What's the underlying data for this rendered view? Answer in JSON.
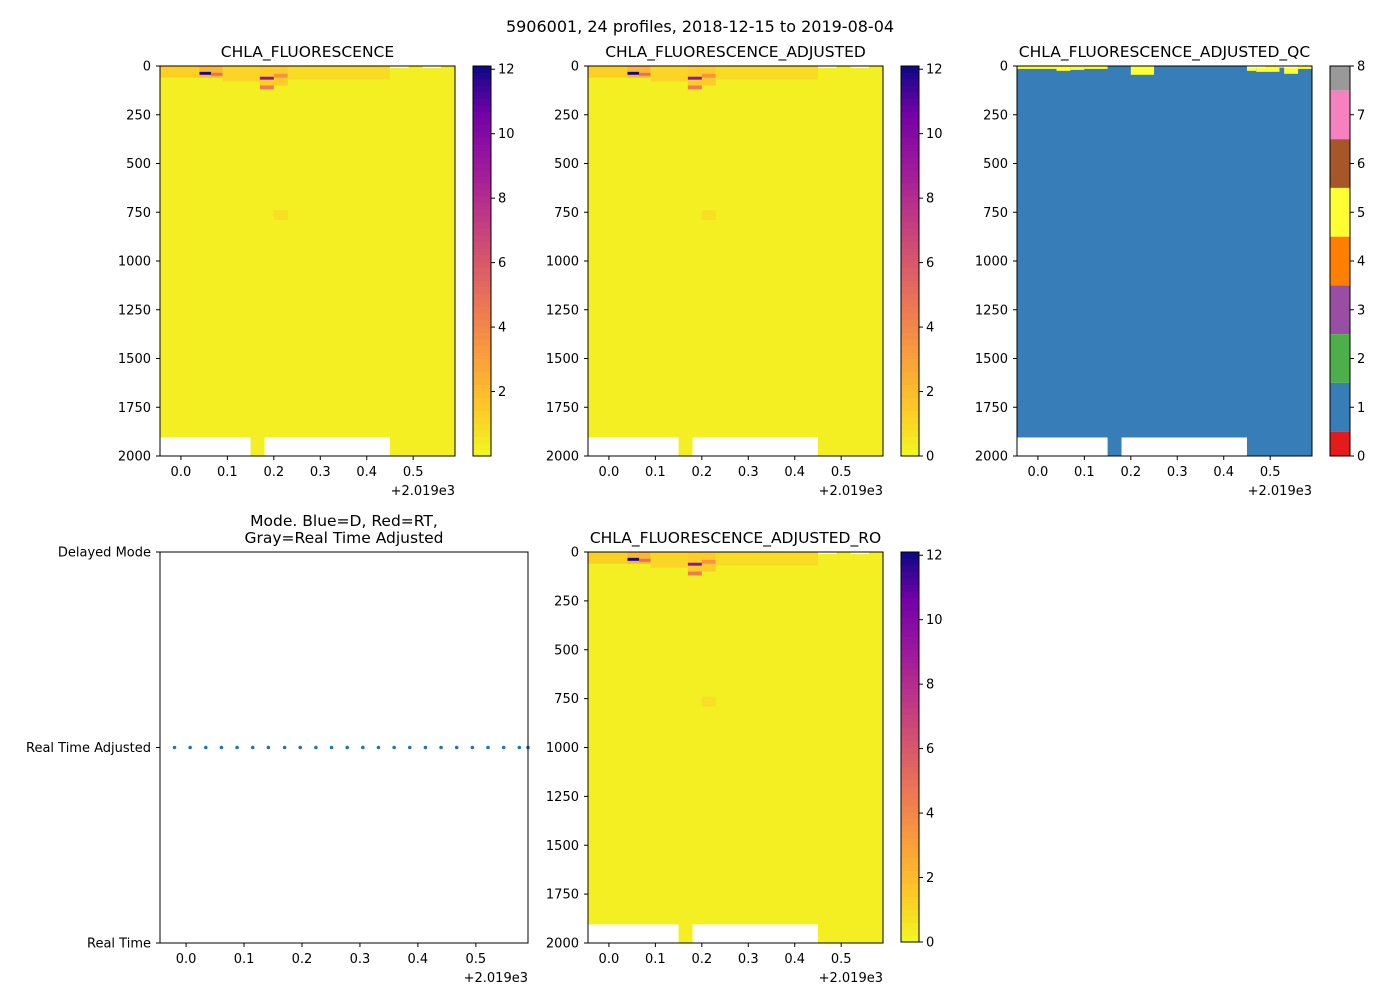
{
  "figure": {
    "suptitle": "5906001, 24 profiles, 2018-12-15 to 2019-08-04"
  },
  "chart_data": [
    {
      "type": "heatmap",
      "title": "CHLA_FLUORESCENCE",
      "xlim": [
        -0.045,
        0.59
      ],
      "ylim": [
        2000,
        0
      ],
      "x_ticks": [
        0.0,
        0.1,
        0.2,
        0.3,
        0.4,
        0.5
      ],
      "x_tick_labels": [
        "0.0",
        "0.1",
        "0.2",
        "0.3",
        "0.4",
        "0.5"
      ],
      "x_offset_label": "+2.019e3",
      "y_ticks": [
        0,
        250,
        500,
        750,
        1000,
        1250,
        1500,
        1750,
        2000
      ],
      "y_tick_labels": [
        "0",
        "250",
        "500",
        "750",
        "1000",
        "1250",
        "1500",
        "1750",
        "2000"
      ],
      "colormap": "plasma_r",
      "background_value": 0.3,
      "colorbar": {
        "range": [
          0,
          12.1
        ],
        "ticks": [
          2,
          4,
          6,
          8,
          10,
          12
        ],
        "tick_labels": [
          "2",
          "4",
          "6",
          "8",
          "10",
          "12"
        ]
      },
      "high_values": [
        {
          "x0": -0.045,
          "x1": 0.04,
          "y0": 0,
          "y1": 60,
          "value": 1.3
        },
        {
          "x0": 0.04,
          "x1": 0.09,
          "y0": 0,
          "y1": 60,
          "value": 2.2
        },
        {
          "x0": 0.04,
          "x1": 0.065,
          "y0": 30,
          "y1": 45,
          "value": 12.0
        },
        {
          "x0": 0.065,
          "x1": 0.09,
          "y0": 35,
          "y1": 50,
          "value": 5.0
        },
        {
          "x0": 0.09,
          "x1": 0.17,
          "y0": 0,
          "y1": 80,
          "value": 1.1
        },
        {
          "x0": 0.17,
          "x1": 0.23,
          "y0": 0,
          "y1": 100,
          "value": 1.4
        },
        {
          "x0": 0.17,
          "x1": 0.2,
          "y0": 55,
          "y1": 70,
          "value": 9.5
        },
        {
          "x0": 0.17,
          "x1": 0.2,
          "y0": 100,
          "y1": 120,
          "value": 4.5
        },
        {
          "x0": 0.2,
          "x1": 0.23,
          "y0": 40,
          "y1": 60,
          "value": 3.5
        },
        {
          "x0": 0.23,
          "x1": 0.45,
          "y0": 0,
          "y1": 70,
          "value": 0.9
        },
        {
          "x0": 0.2,
          "x1": 0.23,
          "y0": 740,
          "y1": 790,
          "value": 0.8
        }
      ],
      "missing": [
        {
          "x0": -0.045,
          "x1": 0.15,
          "y0": 1905,
          "y1": 2000
        },
        {
          "x0": 0.18,
          "x1": 0.45,
          "y0": 1905,
          "y1": 2000
        },
        {
          "x0": 0.45,
          "x1": 0.49,
          "y0": 0,
          "y1": 10
        },
        {
          "x0": 0.52,
          "x1": 0.56,
          "y0": 0,
          "y1": 10
        }
      ]
    },
    {
      "type": "heatmap",
      "title": "CHLA_FLUORESCENCE_ADJUSTED",
      "xlim": [
        -0.045,
        0.59
      ],
      "ylim": [
        2000,
        0
      ],
      "x_ticks": [
        0.0,
        0.1,
        0.2,
        0.3,
        0.4,
        0.5
      ],
      "x_tick_labels": [
        "0.0",
        "0.1",
        "0.2",
        "0.3",
        "0.4",
        "0.5"
      ],
      "x_offset_label": "+2.019e3",
      "y_ticks": [
        0,
        250,
        500,
        750,
        1000,
        1250,
        1500,
        1750,
        2000
      ],
      "y_tick_labels": [
        "0",
        "250",
        "500",
        "750",
        "1000",
        "1250",
        "1500",
        "1750",
        "2000"
      ],
      "colormap": "plasma_r",
      "background_value": 0.3,
      "colorbar": {
        "range": [
          0,
          12.1
        ],
        "ticks": [
          0,
          2,
          4,
          6,
          8,
          10,
          12
        ],
        "tick_labels": [
          "0",
          "2",
          "4",
          "6",
          "8",
          "10",
          "12"
        ]
      },
      "high_values": [
        {
          "x0": -0.045,
          "x1": 0.04,
          "y0": 0,
          "y1": 60,
          "value": 1.3
        },
        {
          "x0": 0.04,
          "x1": 0.09,
          "y0": 0,
          "y1": 60,
          "value": 2.2
        },
        {
          "x0": 0.04,
          "x1": 0.065,
          "y0": 30,
          "y1": 45,
          "value": 12.0
        },
        {
          "x0": 0.065,
          "x1": 0.09,
          "y0": 35,
          "y1": 50,
          "value": 5.0
        },
        {
          "x0": 0.09,
          "x1": 0.17,
          "y0": 0,
          "y1": 80,
          "value": 1.1
        },
        {
          "x0": 0.17,
          "x1": 0.23,
          "y0": 0,
          "y1": 100,
          "value": 1.4
        },
        {
          "x0": 0.17,
          "x1": 0.2,
          "y0": 55,
          "y1": 70,
          "value": 9.5
        },
        {
          "x0": 0.17,
          "x1": 0.2,
          "y0": 100,
          "y1": 120,
          "value": 4.5
        },
        {
          "x0": 0.2,
          "x1": 0.23,
          "y0": 40,
          "y1": 60,
          "value": 3.5
        },
        {
          "x0": 0.23,
          "x1": 0.45,
          "y0": 0,
          "y1": 70,
          "value": 0.9
        },
        {
          "x0": 0.2,
          "x1": 0.23,
          "y0": 740,
          "y1": 790,
          "value": 0.8
        }
      ],
      "missing": [
        {
          "x0": -0.045,
          "x1": 0.15,
          "y0": 1905,
          "y1": 2000
        },
        {
          "x0": 0.18,
          "x1": 0.45,
          "y0": 1905,
          "y1": 2000
        },
        {
          "x0": 0.45,
          "x1": 0.49,
          "y0": 0,
          "y1": 10
        },
        {
          "x0": 0.52,
          "x1": 0.56,
          "y0": 0,
          "y1": 10
        }
      ]
    },
    {
      "type": "heatmap",
      "title": "CHLA_FLUORESCENCE_ADJUSTED_QC",
      "xlim": [
        -0.045,
        0.59
      ],
      "ylim": [
        2000,
        0
      ],
      "x_ticks": [
        0.0,
        0.1,
        0.2,
        0.3,
        0.4,
        0.5
      ],
      "x_tick_labels": [
        "0.0",
        "0.1",
        "0.2",
        "0.3",
        "0.4",
        "0.5"
      ],
      "x_offset_label": "+2.019e3",
      "y_ticks": [
        0,
        250,
        500,
        750,
        1000,
        1250,
        1500,
        1750,
        2000
      ],
      "y_tick_labels": [
        "0",
        "250",
        "500",
        "750",
        "1000",
        "1250",
        "1500",
        "1750",
        "2000"
      ],
      "colormap": "qc_categorical",
      "background_value": 1,
      "categories": [
        {
          "value": 0,
          "color": "#e41a1c"
        },
        {
          "value": 1,
          "color": "#377eb8"
        },
        {
          "value": 2,
          "color": "#4daf4a"
        },
        {
          "value": 3,
          "color": "#984ea3"
        },
        {
          "value": 4,
          "color": "#ff7f00"
        },
        {
          "value": 5,
          "color": "#ffff33"
        },
        {
          "value": 6,
          "color": "#a65628"
        },
        {
          "value": 7,
          "color": "#f781bf"
        },
        {
          "value": 8,
          "color": "#999999"
        }
      ],
      "colorbar": {
        "range": [
          0,
          8
        ],
        "ticks": [
          0,
          1,
          2,
          3,
          4,
          5,
          6,
          7,
          8
        ],
        "tick_labels": [
          "0",
          "1",
          "2",
          "3",
          "4",
          "5",
          "6",
          "7",
          "8"
        ]
      },
      "high_values": [
        {
          "x0": -0.045,
          "x1": 0.04,
          "y0": 0,
          "y1": 15,
          "value": 5
        },
        {
          "x0": 0.04,
          "x1": 0.07,
          "y0": 0,
          "y1": 25,
          "value": 5
        },
        {
          "x0": 0.07,
          "x1": 0.1,
          "y0": 0,
          "y1": 20,
          "value": 5
        },
        {
          "x0": 0.1,
          "x1": 0.15,
          "y0": 0,
          "y1": 15,
          "value": 5
        },
        {
          "x0": 0.2,
          "x1": 0.25,
          "y0": 0,
          "y1": 45,
          "value": 5
        },
        {
          "x0": 0.45,
          "x1": 0.47,
          "y0": 0,
          "y1": 25,
          "value": 5
        },
        {
          "x0": 0.47,
          "x1": 0.52,
          "y0": 0,
          "y1": 30,
          "value": 5
        },
        {
          "x0": 0.53,
          "x1": 0.56,
          "y0": 0,
          "y1": 40,
          "value": 5
        },
        {
          "x0": 0.56,
          "x1": 0.59,
          "y0": 0,
          "y1": 15,
          "value": 5
        }
      ],
      "missing": [
        {
          "x0": -0.045,
          "x1": 0.15,
          "y0": 1905,
          "y1": 2000
        },
        {
          "x0": 0.18,
          "x1": 0.45,
          "y0": 1905,
          "y1": 2000
        },
        {
          "x0": 0.45,
          "x1": 0.49,
          "y0": 0,
          "y1": 8
        },
        {
          "x0": 0.52,
          "x1": 0.56,
          "y0": 0,
          "y1": 8
        }
      ]
    },
    {
      "type": "scatter",
      "title": "Mode. Blue=D, Red=RT,\nGray=Real Time Adjusted",
      "xlim": [
        -0.045,
        0.59
      ],
      "ylim": [
        0,
        2
      ],
      "x_ticks": [
        0.0,
        0.1,
        0.2,
        0.3,
        0.4,
        0.5
      ],
      "x_tick_labels": [
        "0.0",
        "0.1",
        "0.2",
        "0.3",
        "0.4",
        "0.5"
      ],
      "x_offset_label": "+2.019e3",
      "y_ticks": [
        0,
        1,
        2
      ],
      "y_tick_labels": [
        "Real Time",
        "Real Time Adjusted",
        "Delayed Mode"
      ],
      "color": "#1f77b4",
      "x": [
        -0.02,
        0.007,
        0.034,
        0.061,
        0.088,
        0.115,
        0.142,
        0.17,
        0.197,
        0.224,
        0.251,
        0.278,
        0.305,
        0.332,
        0.359,
        0.386,
        0.413,
        0.44,
        0.467,
        0.494,
        0.521,
        0.548,
        0.575,
        0.59
      ],
      "y": [
        1,
        1,
        1,
        1,
        1,
        1,
        1,
        1,
        1,
        1,
        1,
        1,
        1,
        1,
        1,
        1,
        1,
        1,
        1,
        1,
        1,
        1,
        1,
        1
      ]
    },
    {
      "type": "heatmap",
      "title": "CHLA_FLUORESCENCE_ADJUSTED_RO",
      "xlim": [
        -0.045,
        0.59
      ],
      "ylim": [
        2000,
        0
      ],
      "x_ticks": [
        0.0,
        0.1,
        0.2,
        0.3,
        0.4,
        0.5
      ],
      "x_tick_labels": [
        "0.0",
        "0.1",
        "0.2",
        "0.3",
        "0.4",
        "0.5"
      ],
      "x_offset_label": "+2.019e3",
      "y_ticks": [
        0,
        250,
        500,
        750,
        1000,
        1250,
        1500,
        1750,
        2000
      ],
      "y_tick_labels": [
        "0",
        "250",
        "500",
        "750",
        "1000",
        "1250",
        "1500",
        "1750",
        "2000"
      ],
      "colormap": "plasma_r",
      "background_value": 0.3,
      "colorbar": {
        "range": [
          0,
          12.1
        ],
        "ticks": [
          0,
          2,
          4,
          6,
          8,
          10,
          12
        ],
        "tick_labels": [
          "0",
          "2",
          "4",
          "6",
          "8",
          "10",
          "12"
        ]
      },
      "high_values": [
        {
          "x0": -0.045,
          "x1": 0.04,
          "y0": 0,
          "y1": 60,
          "value": 1.3
        },
        {
          "x0": 0.04,
          "x1": 0.09,
          "y0": 0,
          "y1": 60,
          "value": 2.2
        },
        {
          "x0": 0.04,
          "x1": 0.065,
          "y0": 30,
          "y1": 45,
          "value": 12.0
        },
        {
          "x0": 0.065,
          "x1": 0.09,
          "y0": 35,
          "y1": 50,
          "value": 5.0
        },
        {
          "x0": 0.09,
          "x1": 0.17,
          "y0": 0,
          "y1": 80,
          "value": 1.1
        },
        {
          "x0": 0.17,
          "x1": 0.23,
          "y0": 0,
          "y1": 100,
          "value": 1.4
        },
        {
          "x0": 0.17,
          "x1": 0.2,
          "y0": 55,
          "y1": 70,
          "value": 9.5
        },
        {
          "x0": 0.17,
          "x1": 0.2,
          "y0": 100,
          "y1": 120,
          "value": 4.5
        },
        {
          "x0": 0.2,
          "x1": 0.23,
          "y0": 40,
          "y1": 60,
          "value": 3.5
        },
        {
          "x0": 0.23,
          "x1": 0.45,
          "y0": 0,
          "y1": 70,
          "value": 0.9
        },
        {
          "x0": 0.2,
          "x1": 0.23,
          "y0": 740,
          "y1": 790,
          "value": 0.8
        }
      ],
      "missing": [
        {
          "x0": -0.045,
          "x1": 0.15,
          "y0": 1905,
          "y1": 2000
        },
        {
          "x0": 0.18,
          "x1": 0.45,
          "y0": 1905,
          "y1": 2000
        },
        {
          "x0": 0.45,
          "x1": 0.49,
          "y0": 0,
          "y1": 10
        },
        {
          "x0": 0.52,
          "x1": 0.56,
          "y0": 0,
          "y1": 10
        }
      ]
    }
  ]
}
